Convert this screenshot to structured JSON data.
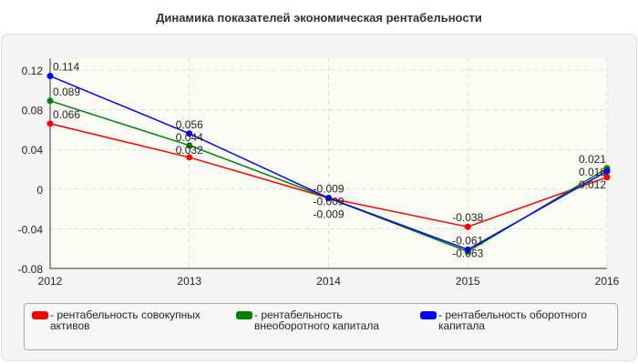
{
  "chart_data": {
    "type": "line",
    "title": "Динамика показателей экономическая рентабельности",
    "x": [
      "2012",
      "2013",
      "2014",
      "2015",
      "2016"
    ],
    "ylim": [
      -0.08,
      0.12
    ],
    "yticks": [
      "-0.08",
      "-0.04",
      "0",
      "0.04",
      "0.08",
      "0.12"
    ],
    "yticks_values": [
      -0.08,
      -0.04,
      0,
      0.04,
      0.08,
      0.12
    ],
    "grid": true,
    "legend_placement": "bottom",
    "series": [
      {
        "name": "- рентабельность совокупных активов",
        "color": "#ff0000",
        "values": [
          0.066,
          0.032,
          -0.009,
          -0.038,
          0.012
        ]
      },
      {
        "name": "- рентабельность внеоборотного капитала",
        "color": "#008000",
        "values": [
          0.089,
          0.044,
          -0.009,
          -0.063,
          0.021
        ]
      },
      {
        "name": "- рентабельность оборотного капитала",
        "color": "#0000ff",
        "values": [
          0.114,
          0.056,
          -0.009,
          -0.061,
          0.018
        ]
      }
    ]
  }
}
